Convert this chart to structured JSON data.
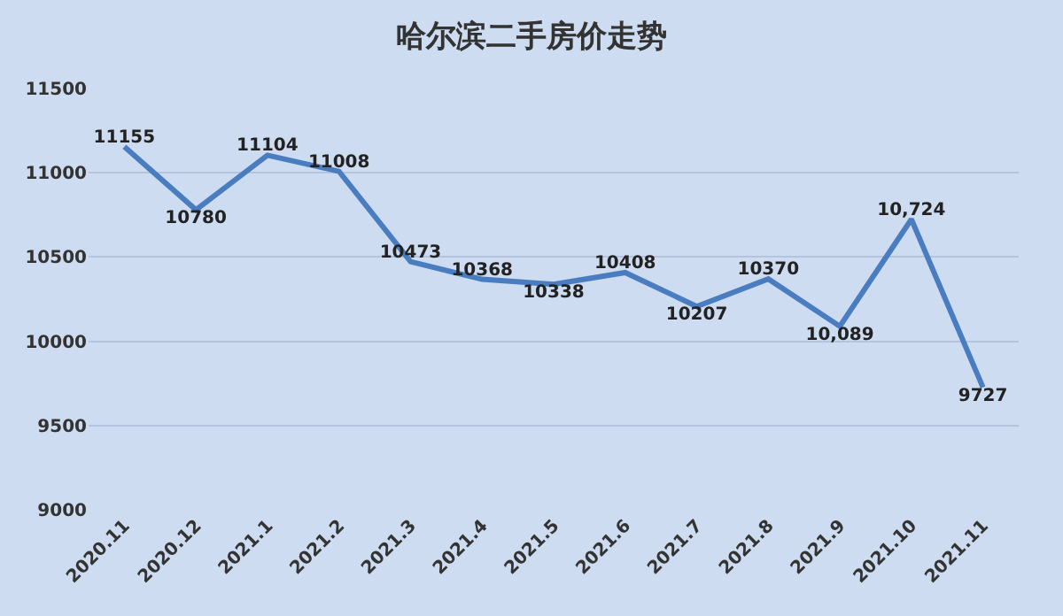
{
  "chart_data": {
    "type": "line",
    "title": "哈尔滨二手房价走势",
    "categories": [
      "2020.11",
      "2020.12",
      "2021.1",
      "2021.2",
      "2021.3",
      "2021.4",
      "2021.5",
      "2021.6",
      "2021.7",
      "2021.8",
      "2021.9",
      "2021.10",
      "2021.11"
    ],
    "series": [
      {
        "color": "#4a7cc0",
        "values": [
          11155,
          10780,
          11104,
          11008,
          10473,
          10368,
          10338,
          10408,
          10207,
          10370,
          10089,
          10724,
          9727
        ],
        "value_labels": [
          "11155",
          "10780",
          "11104",
          "11008",
          "10473",
          "10368",
          "10338",
          "10408",
          "10207",
          "10370",
          "10,089",
          "10,724",
          "9727"
        ]
      }
    ],
    "ylim": [
      9000,
      11500
    ],
    "yticks": [
      9000,
      9500,
      10000,
      10500,
      11000,
      11500
    ],
    "grid": "y",
    "marker": "none",
    "line_style": "solid"
  }
}
